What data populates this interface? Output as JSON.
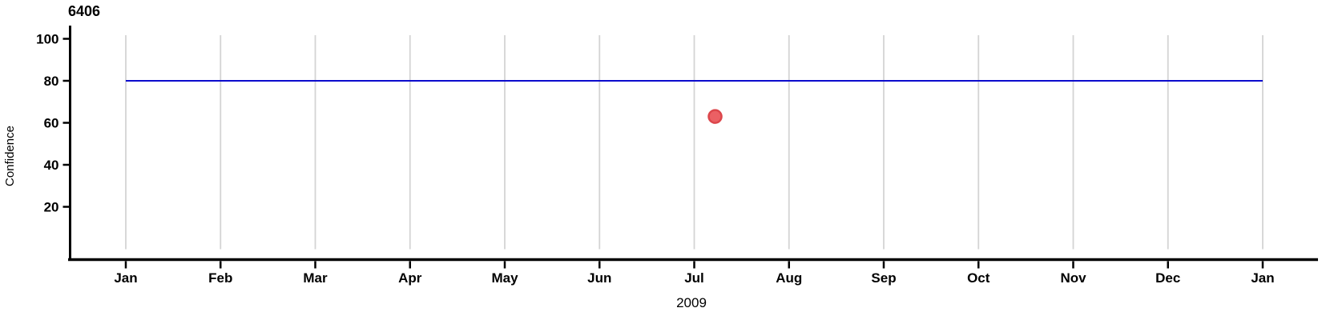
{
  "chart_data": {
    "type": "scatter",
    "title": "6406",
    "xlabel": "2009",
    "ylabel": "Confidence",
    "x_tick_labels": [
      "Jan",
      "Feb",
      "Mar",
      "Apr",
      "May",
      "Jun",
      "Jul",
      "Aug",
      "Sep",
      "Oct",
      "Nov",
      "Dec",
      "Jan"
    ],
    "y_ticks": [
      100,
      80,
      60,
      40,
      20
    ],
    "y_range": [
      0,
      105
    ],
    "grid": {
      "vertical": true,
      "horizontal": false,
      "color": "#d4d4d4"
    },
    "axis_color": "#000000",
    "reference_line": {
      "y": 80,
      "color": "#0b0bcd"
    },
    "series": [
      {
        "name": "confidence",
        "points": [
          {
            "x_month_index": 6.22,
            "approx_date": "2009-07-08",
            "y": 63
          }
        ],
        "marker": {
          "fill": "#eb6064",
          "stroke": "#dc464b",
          "radius": 8
        }
      }
    ]
  }
}
